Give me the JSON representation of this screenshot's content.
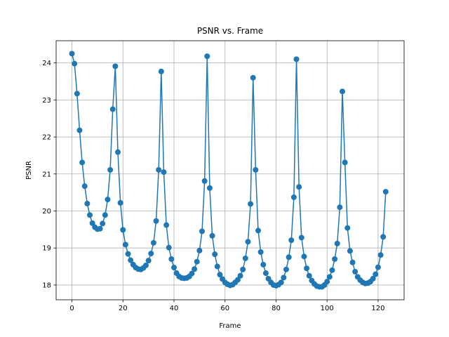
{
  "chart_data": {
    "type": "line",
    "title": "PSNR vs. Frame",
    "xlabel": "Frame",
    "ylabel": "PSNR",
    "xlim": [
      -6.2,
      130.2
    ],
    "ylim": [
      17.6,
      24.6
    ],
    "xticks": [
      0,
      20,
      40,
      60,
      80,
      100,
      120
    ],
    "yticks": [
      18,
      19,
      20,
      21,
      22,
      23,
      24
    ],
    "grid": true,
    "legend": "none",
    "color": "#1f77b4",
    "marker": "circle",
    "series": [
      {
        "values": [
          24.25,
          23.98,
          23.17,
          22.18,
          21.31,
          20.67,
          20.2,
          19.89,
          19.67,
          19.56,
          19.51,
          19.52,
          19.66,
          19.89,
          20.31,
          21.11,
          22.75,
          23.91,
          21.59,
          20.22,
          19.49,
          19.09,
          18.84,
          18.67,
          18.55,
          18.47,
          18.43,
          18.42,
          18.46,
          18.53,
          18.66,
          18.85,
          19.14,
          19.73,
          21.11,
          23.77,
          21.05,
          19.62,
          19.01,
          18.7,
          18.47,
          18.32,
          18.23,
          18.19,
          18.18,
          18.19,
          18.23,
          18.31,
          18.43,
          18.63,
          18.93,
          19.45,
          20.81,
          24.18,
          20.62,
          19.33,
          18.83,
          18.5,
          18.28,
          18.16,
          18.07,
          18.02,
          17.99,
          18.01,
          18.07,
          18.14,
          18.25,
          18.42,
          18.72,
          19.17,
          20.19,
          23.6,
          21.11,
          19.47,
          18.89,
          18.55,
          18.32,
          18.17,
          18.07,
          18.0,
          17.98,
          18.01,
          18.07,
          18.2,
          18.42,
          18.75,
          19.21,
          20.37,
          24.1,
          20.65,
          19.28,
          18.77,
          18.45,
          18.25,
          18.12,
          18.03,
          17.97,
          17.95,
          17.95,
          18.0,
          18.09,
          18.22,
          18.4,
          18.7,
          19.12,
          20.1,
          23.23,
          21.31,
          19.54,
          18.92,
          18.61,
          18.36,
          18.22,
          18.13,
          18.07,
          18.04,
          18.05,
          18.09,
          18.17,
          18.29,
          18.48,
          18.81,
          19.3,
          20.52
        ]
      }
    ]
  }
}
